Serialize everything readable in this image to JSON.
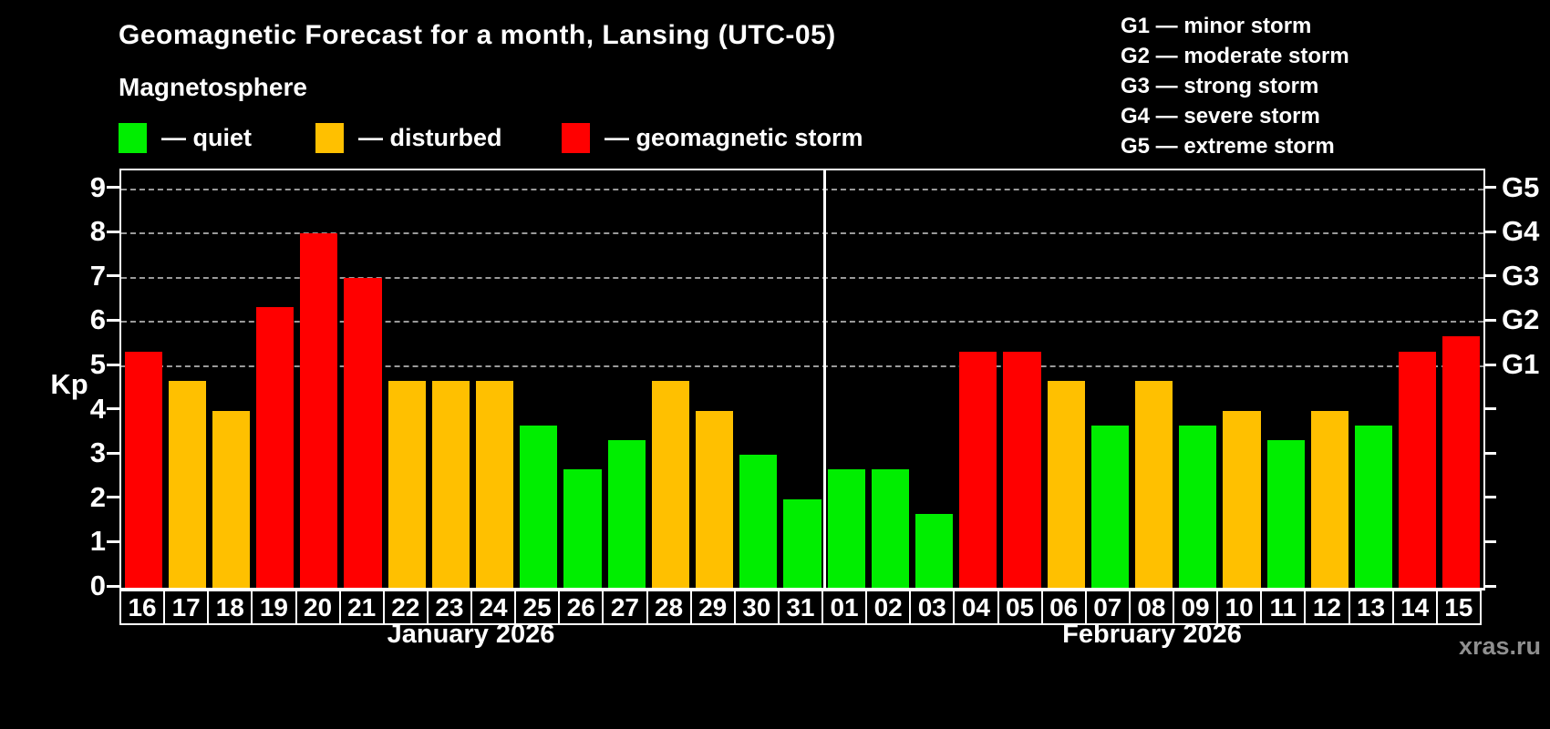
{
  "title": "Geomagnetic Forecast for a month, Lansing (UTC-05)",
  "subtitle": "Magnetosphere",
  "legend": {
    "items": [
      {
        "label": "— quiet",
        "status": "quiet",
        "color": "#00ee00"
      },
      {
        "label": "— disturbed",
        "status": "disturbed",
        "color": "#ffc000"
      },
      {
        "label": "— geomagnetic storm",
        "status": "storm",
        "color": "#ff0000"
      }
    ]
  },
  "g_legend": [
    "G1 — minor storm",
    "G2 — moderate storm",
    "G3 — strong storm",
    "G4 — severe storm",
    "G5 — extreme storm"
  ],
  "watermark": "xras.ru",
  "chart_data": {
    "type": "bar",
    "title": "Geomagnetic Forecast for a month, Lansing (UTC-05)",
    "ylabel": "Kp",
    "ylim": [
      0,
      9.42
    ],
    "yticks": [
      0,
      1,
      2,
      3,
      4,
      5,
      6,
      7,
      8,
      9
    ],
    "gridlines_at": [
      5,
      6,
      7,
      8,
      9
    ],
    "grid": "horizontal dashed at storm levels only",
    "legend_position": "top",
    "right_axis_labels": {
      "5": "G1",
      "6": "G2",
      "7": "G3",
      "8": "G4",
      "9": "G5"
    },
    "status_colors": {
      "quiet": "#00ee00",
      "disturbed": "#ffc000",
      "storm": "#ff0000"
    },
    "groups": [
      {
        "label": "January 2026",
        "days": [
          "16",
          "17",
          "18",
          "19",
          "20",
          "21",
          "22",
          "23",
          "24",
          "25",
          "26",
          "27",
          "28",
          "29",
          "30",
          "31"
        ],
        "values": [
          5.33,
          4.67,
          4.0,
          6.33,
          8.0,
          7.0,
          4.67,
          4.67,
          4.67,
          3.67,
          2.67,
          3.33,
          4.67,
          4.0,
          3.0,
          2.0
        ],
        "statuses": [
          "storm",
          "disturbed",
          "disturbed",
          "storm",
          "storm",
          "storm",
          "disturbed",
          "disturbed",
          "disturbed",
          "quiet",
          "quiet",
          "quiet",
          "disturbed",
          "disturbed",
          "quiet",
          "quiet"
        ]
      },
      {
        "label": "February 2026",
        "days": [
          "01",
          "02",
          "03",
          "04",
          "05",
          "06",
          "07",
          "08",
          "09",
          "10",
          "11",
          "12",
          "13",
          "14",
          "15"
        ],
        "values": [
          2.67,
          2.67,
          1.67,
          5.33,
          5.33,
          4.67,
          3.67,
          4.67,
          3.67,
          4.0,
          3.33,
          4.0,
          3.67,
          5.33,
          5.67
        ],
        "statuses": [
          "quiet",
          "quiet",
          "quiet",
          "storm",
          "storm",
          "disturbed",
          "quiet",
          "disturbed",
          "quiet",
          "disturbed",
          "quiet",
          "disturbed",
          "quiet",
          "storm",
          "storm"
        ]
      }
    ]
  }
}
